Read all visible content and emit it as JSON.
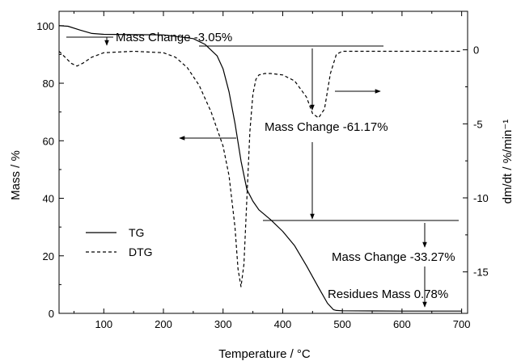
{
  "chart_data": {
    "type": "line",
    "xlabel": "Temperature / °C",
    "ylabel": "Mass / %",
    "y2label": "dm/dt / %/min⁻¹",
    "xlim": [
      25,
      710
    ],
    "ylim": [
      0,
      105
    ],
    "y2lim": [
      -17.8,
      2.6
    ],
    "xticks": [
      100,
      200,
      300,
      400,
      500,
      600,
      700
    ],
    "yticks": [
      0,
      20,
      40,
      60,
      80,
      100
    ],
    "y2ticks": [
      0,
      -5,
      -10,
      -15
    ],
    "grid": false,
    "legend_position": "left-bottom",
    "series": [
      {
        "name": "TG",
        "axis": "left",
        "style": "solid",
        "x": [
          25,
          40,
          60,
          80,
          100,
          150,
          200,
          250,
          270,
          290,
          300,
          310,
          320,
          330,
          340,
          350,
          360,
          380,
          400,
          420,
          440,
          460,
          475,
          485,
          490,
          500,
          550,
          600,
          650,
          700
        ],
        "y": [
          100,
          99.8,
          98.5,
          97.3,
          97.0,
          96.9,
          96.8,
          95.5,
          93.5,
          89.5,
          85,
          77,
          66,
          53,
          43,
          39,
          36,
          32.5,
          28.5,
          23.5,
          16.5,
          9,
          3.5,
          1.3,
          1.0,
          0.9,
          0.85,
          0.8,
          0.78,
          0.78
        ]
      },
      {
        "name": "DTG",
        "axis": "right",
        "style": "dashed",
        "x": [
          25,
          35,
          45,
          55,
          65,
          80,
          100,
          150,
          200,
          220,
          240,
          260,
          280,
          300,
          310,
          320,
          325,
          330,
          335,
          340,
          345,
          350,
          355,
          360,
          370,
          380,
          400,
          420,
          440,
          450,
          460,
          470,
          480,
          490,
          500,
          550,
          600,
          650,
          700
        ],
        "y": [
          -0.1,
          -0.5,
          -0.9,
          -1.1,
          -0.9,
          -0.5,
          -0.2,
          -0.1,
          -0.2,
          -0.5,
          -1.2,
          -2.4,
          -4.2,
          -6.5,
          -8.5,
          -12,
          -14.8,
          -16,
          -14.5,
          -10,
          -5.5,
          -3,
          -2,
          -1.7,
          -1.6,
          -1.6,
          -1.7,
          -2.1,
          -3.2,
          -4.3,
          -4.6,
          -4.0,
          -1.6,
          -0.3,
          -0.1,
          -0.1,
          -0.1,
          -0.1,
          -0.1
        ]
      }
    ],
    "annotations": [
      {
        "text": "Mass Change -3.05%",
        "x": 104,
        "y": 100
      },
      {
        "text": "Mass Change -61.17%",
        "x": 327,
        "y": 68
      },
      {
        "text": "Mass Change -33.27%",
        "x": 410,
        "y": 21
      },
      {
        "text": "Residues Mass 0.78%",
        "x": 405,
        "y": 6
      }
    ]
  }
}
